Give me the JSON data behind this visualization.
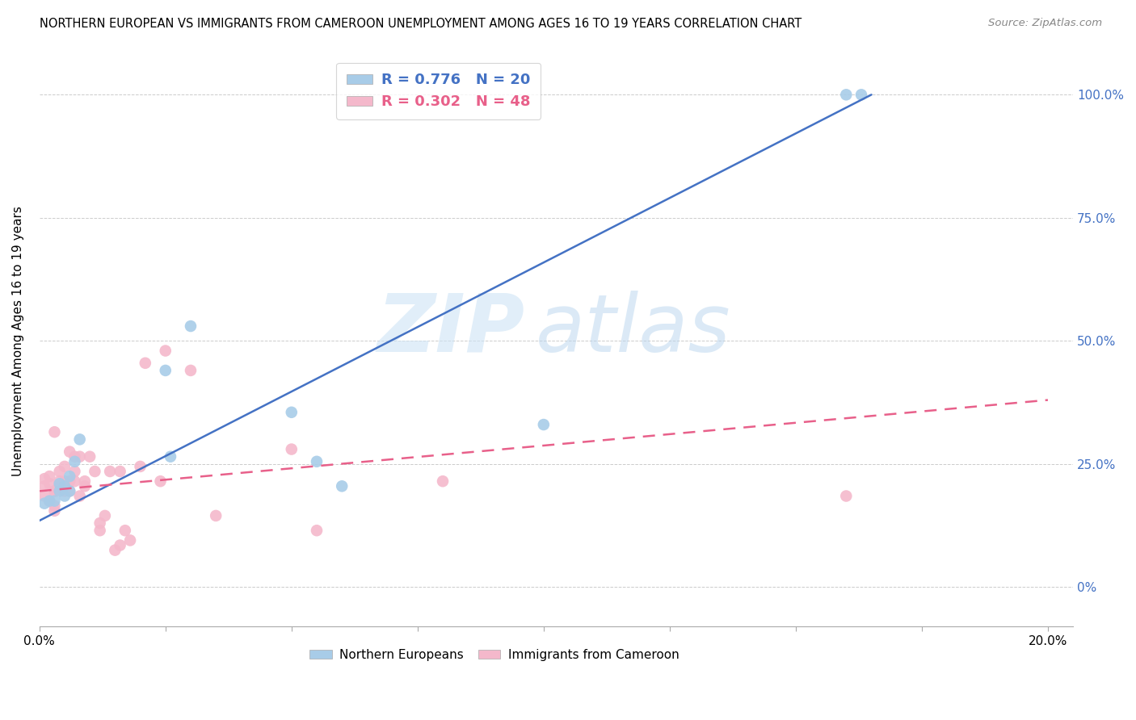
{
  "title": "NORTHERN EUROPEAN VS IMMIGRANTS FROM CAMEROON UNEMPLOYMENT AMONG AGES 16 TO 19 YEARS CORRELATION CHART",
  "source": "Source: ZipAtlas.com",
  "ylabel": "Unemployment Among Ages 16 to 19 years",
  "legend_label_blue": "R = 0.776   N = 20",
  "legend_label_pink": "R = 0.302   N = 48",
  "legend_bottom_blue": "Northern Europeans",
  "legend_bottom_pink": "Immigrants from Cameroon",
  "blue_color": "#a8cce8",
  "pink_color": "#f4b8cb",
  "blue_line_color": "#4472c4",
  "pink_line_color": "#e8608a",
  "background_color": "#ffffff",
  "watermark_zip": "ZIP",
  "watermark_atlas": "atlas",
  "blue_dots_x": [
    0.001,
    0.002,
    0.003,
    0.004,
    0.004,
    0.005,
    0.005,
    0.006,
    0.006,
    0.007,
    0.008,
    0.025,
    0.026,
    0.03,
    0.05,
    0.055,
    0.06,
    0.1,
    0.16,
    0.163
  ],
  "blue_dots_y": [
    0.17,
    0.175,
    0.175,
    0.195,
    0.21,
    0.185,
    0.205,
    0.195,
    0.225,
    0.255,
    0.3,
    0.44,
    0.265,
    0.53,
    0.355,
    0.255,
    0.205,
    0.33,
    1.0,
    1.0
  ],
  "pink_dots_x": [
    0.001,
    0.001,
    0.001,
    0.002,
    0.002,
    0.002,
    0.003,
    0.003,
    0.003,
    0.003,
    0.003,
    0.004,
    0.004,
    0.004,
    0.005,
    0.005,
    0.005,
    0.006,
    0.006,
    0.006,
    0.007,
    0.007,
    0.007,
    0.008,
    0.008,
    0.009,
    0.009,
    0.01,
    0.011,
    0.012,
    0.012,
    0.013,
    0.014,
    0.015,
    0.016,
    0.016,
    0.017,
    0.018,
    0.02,
    0.021,
    0.024,
    0.025,
    0.03,
    0.035,
    0.05,
    0.055,
    0.08,
    0.16
  ],
  "pink_dots_y": [
    0.185,
    0.205,
    0.22,
    0.175,
    0.21,
    0.225,
    0.195,
    0.165,
    0.155,
    0.315,
    0.195,
    0.205,
    0.215,
    0.235,
    0.195,
    0.215,
    0.245,
    0.195,
    0.215,
    0.275,
    0.215,
    0.235,
    0.265,
    0.185,
    0.265,
    0.205,
    0.215,
    0.265,
    0.235,
    0.115,
    0.13,
    0.145,
    0.235,
    0.075,
    0.085,
    0.235,
    0.115,
    0.095,
    0.245,
    0.455,
    0.215,
    0.48,
    0.44,
    0.145,
    0.28,
    0.115,
    0.215,
    0.185
  ],
  "blue_trend_x": [
    0.0,
    0.165
  ],
  "blue_trend_y": [
    0.135,
    1.0
  ],
  "pink_trend_x": [
    0.0,
    0.2
  ],
  "pink_trend_y": [
    0.195,
    0.38
  ],
  "xlim": [
    0.0,
    0.205
  ],
  "ylim": [
    -0.08,
    1.08
  ],
  "ytick_positions": [
    0.0,
    0.25,
    0.5,
    0.75,
    1.0
  ],
  "ytick_labels": [
    "0%",
    "25.0%",
    "50.0%",
    "75.0%",
    "100.0%"
  ]
}
